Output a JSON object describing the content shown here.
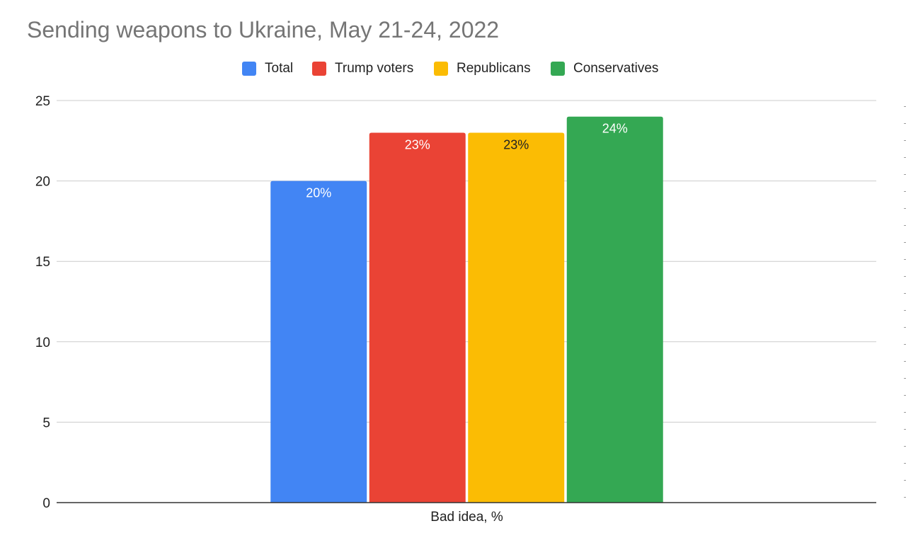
{
  "chart_data": {
    "type": "bar",
    "title": "Sending weapons to Ukraine, May 21-24, 2022",
    "categories": [
      "Bad idea, %"
    ],
    "series": [
      {
        "name": "Total",
        "values": [
          20
        ],
        "color": "#4285f4",
        "label": "20%",
        "label_color": "#ffffff"
      },
      {
        "name": "Trump voters",
        "values": [
          23
        ],
        "color": "#ea4335",
        "label": "23%",
        "label_color": "#ffffff"
      },
      {
        "name": "Republicans",
        "values": [
          23
        ],
        "color": "#fbbc04",
        "label": "23%",
        "label_color": "#222222"
      },
      {
        "name": "Conservatives",
        "values": [
          24
        ],
        "color": "#34a853",
        "label": "24%",
        "label_color": "#ffffff"
      }
    ],
    "ylim": [
      0,
      25
    ],
    "yticks": [
      "0",
      "5",
      "10",
      "15",
      "20",
      "25"
    ],
    "grid": true,
    "legend": "top-center"
  }
}
